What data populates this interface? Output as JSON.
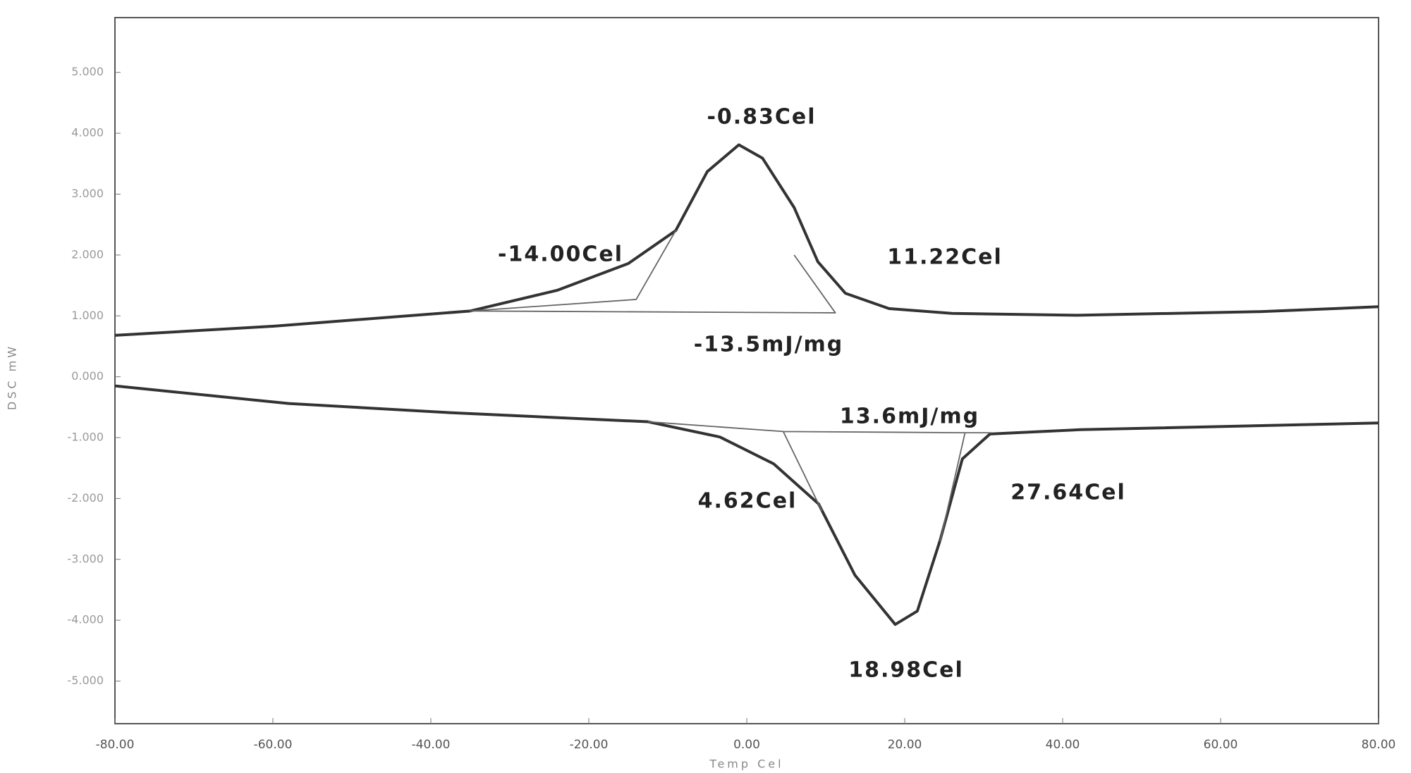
{
  "chart_data": {
    "type": "line",
    "x_label": "Temp Cel",
    "y_label": "DSC mW",
    "xlim": [
      -80,
      80
    ],
    "ylim": [
      -5.7,
      5.9
    ],
    "xticks": [
      {
        "value": -80,
        "label": "-80.00"
      },
      {
        "value": -60,
        "label": "-60.00"
      },
      {
        "value": -40,
        "label": "-40.00"
      },
      {
        "value": -20,
        "label": "-20.00"
      },
      {
        "value": 0,
        "label": "0.00"
      },
      {
        "value": 20,
        "label": "20.00"
      },
      {
        "value": 40,
        "label": "40.00"
      },
      {
        "value": 60,
        "label": "60.00"
      },
      {
        "value": 80,
        "label": "80.00"
      }
    ],
    "yticks": [
      {
        "value": 5,
        "label": "5.000"
      },
      {
        "value": 4,
        "label": "4.000"
      },
      {
        "value": 3,
        "label": "3.000"
      },
      {
        "value": 2,
        "label": "2.000"
      },
      {
        "value": 1,
        "label": "1.000"
      },
      {
        "value": 0,
        "label": "0.000"
      },
      {
        "value": -1,
        "label": "-1.000"
      },
      {
        "value": -2,
        "label": "-2.000"
      },
      {
        "value": -3,
        "label": "-3.000"
      },
      {
        "value": -4,
        "label": "-4.000"
      },
      {
        "value": -5,
        "label": "-5.000"
      }
    ],
    "grid": false,
    "series": [
      {
        "color": "#333333",
        "x": [
          -80,
          -60,
          -35,
          -24,
          -15,
          -9,
          -5,
          -1,
          2,
          6,
          9,
          12.5,
          18,
          26,
          42,
          65,
          80
        ],
        "values": [
          0.68,
          0.83,
          1.08,
          1.42,
          1.86,
          2.4,
          3.37,
          3.81,
          3.59,
          2.78,
          1.89,
          1.37,
          1.12,
          1.04,
          1.01,
          1.07,
          1.15
        ]
      },
      {
        "color": "#333333",
        "x": [
          -80,
          -58,
          -37.6,
          -12.5,
          -3.4,
          3.4,
          9.1,
          13.7,
          18.8,
          21.6,
          24.5,
          27.3,
          30.8,
          42.2,
          80
        ],
        "values": [
          -0.15,
          -0.44,
          -0.59,
          -0.74,
          -0.99,
          -1.43,
          -2.09,
          -3.26,
          -4.07,
          -3.85,
          -2.68,
          -1.35,
          -0.94,
          -0.87,
          -0.76
        ]
      },
      {
        "color": "#666666",
        "x": [
          -35,
          -14,
          -9,
          -14,
          -35,
          11.22,
          6
        ],
        "values": [
          1.08,
          1.27,
          2.4,
          1.27,
          1.08,
          1.05,
          2.0
        ]
      },
      {
        "color": "#666666",
        "x": [
          -12.5,
          4.62,
          9.5,
          4.62,
          27.64,
          24.5,
          27.64,
          31
        ],
        "values": [
          -0.74,
          -0.9,
          -2.2,
          -0.9,
          -0.92,
          -2.7,
          -0.92,
          -0.92
        ]
      }
    ],
    "annotations": [
      "-0.83Cel",
      "-14.00Cel",
      "11.22Cel",
      "-13.5mJ/mg",
      "13.6mJ/mg",
      "4.62Cel",
      "27.64Cel",
      "18.98Cel"
    ]
  }
}
